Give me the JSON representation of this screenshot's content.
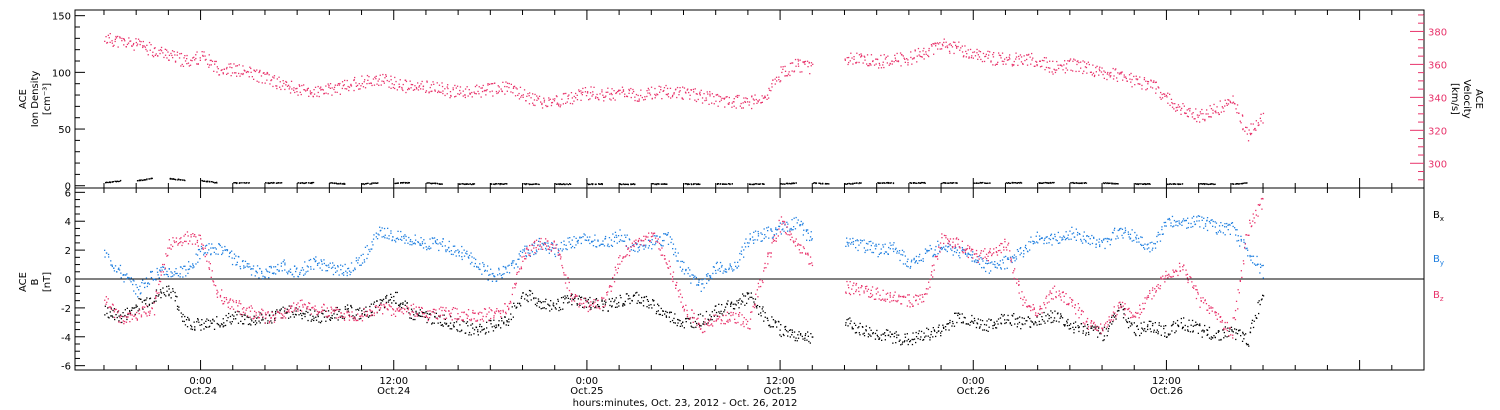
{
  "chart_data": [
    {
      "type": "scatter",
      "panel": "top",
      "left_axis": {
        "label_lines": [
          "ACE",
          "Ion Density",
          "[cm⁻³]"
        ],
        "ylim": [
          -2,
          155
        ],
        "ticks": [
          0,
          50,
          100,
          150
        ],
        "tick_labels": [
          "0",
          "50",
          "100",
          "150"
        ]
      },
      "right_axis": {
        "label_lines": [
          "ACE",
          "Velocity",
          "[km/s]"
        ],
        "ylim": [
          285,
          393
        ],
        "ticks": [
          300,
          320,
          340,
          360,
          380
        ],
        "tick_labels": [
          "300",
          "320",
          "340",
          "360",
          "380"
        ],
        "color": "#e8336b"
      },
      "series": [
        {
          "color": "#e8336b",
          "axis": "right",
          "x_hours": [
            -6,
            -5,
            -4,
            -3,
            -2,
            -1,
            0,
            1,
            2,
            3,
            4,
            5,
            6,
            7,
            8,
            9,
            10,
            11,
            12,
            13,
            14,
            15,
            16,
            17,
            18,
            19,
            20,
            21,
            22,
            23,
            24,
            25,
            26,
            27,
            28,
            29,
            30,
            31,
            32,
            33,
            34,
            35,
            36,
            37,
            38,
            39,
            40,
            41,
            42,
            43,
            44,
            45,
            46,
            47,
            48,
            49,
            50,
            51,
            52,
            53,
            54,
            55,
            56,
            57,
            58,
            59,
            60,
            61,
            62,
            63,
            64,
            65,
            66
          ],
          "values": [
            376,
            374,
            372,
            369,
            366,
            362,
            365,
            358,
            357,
            355,
            352,
            348,
            345,
            343,
            345,
            347,
            350,
            351,
            349,
            346,
            347,
            345,
            343,
            344,
            345,
            346,
            342,
            337,
            338,
            340,
            343,
            342,
            343,
            341,
            343,
            344,
            343,
            341,
            339,
            338,
            337,
            339,
            355,
            360,
            358,
            null,
            364,
            363,
            362,
            363,
            364,
            368,
            372,
            370,
            366,
            364,
            363,
            364,
            362,
            358,
            360,
            358,
            355,
            354,
            350,
            348,
            340,
            332,
            329,
            333,
            338,
            318,
            330
          ]
        },
        {
          "color": "#000000",
          "axis": "left",
          "x_hours": [
            -6,
            -4,
            -2,
            0,
            2,
            4,
            6,
            8,
            10,
            12,
            14,
            16,
            18,
            20,
            22,
            24,
            26,
            28,
            30,
            32,
            34,
            36,
            38,
            40,
            42,
            44,
            46,
            48,
            50,
            52,
            54,
            56,
            58,
            60,
            62,
            64,
            66
          ],
          "values": [
            3,
            5,
            7,
            5,
            3,
            3,
            3,
            3,
            2,
            3,
            3,
            2,
            2,
            2,
            2,
            2,
            2,
            2,
            2,
            2,
            2,
            2,
            3,
            2,
            3,
            3,
            3,
            3,
            3,
            3,
            3,
            3,
            2,
            2,
            2,
            2,
            3
          ]
        }
      ]
    },
    {
      "type": "scatter",
      "panel": "bottom",
      "left_axis": {
        "label_lines": [
          "ACE",
          "B",
          "[nT]"
        ],
        "ylim": [
          -6.3,
          6.3
        ],
        "ticks": [
          -6,
          -4,
          -2,
          0,
          2,
          4,
          6
        ],
        "tick_labels": [
          "-6",
          "-4",
          "-2",
          "0",
          "2",
          "4",
          "6"
        ]
      },
      "zero_line": true,
      "legend": [
        {
          "text": "B",
          "sub": "x",
          "color": "#000000"
        },
        {
          "text": "B",
          "sub": "y",
          "color": "#1f7fe0"
        },
        {
          "text": "B",
          "sub": "z",
          "color": "#e8336b"
        }
      ],
      "series": [
        {
          "color": "#000000",
          "x_hours": [
            -6,
            -5,
            -4,
            -3,
            -2,
            -1,
            0,
            1,
            2,
            3,
            4,
            5,
            6,
            7,
            8,
            9,
            10,
            11,
            12,
            13,
            14,
            15,
            16,
            17,
            18,
            19,
            20,
            21,
            22,
            23,
            24,
            25,
            26,
            27,
            28,
            29,
            30,
            31,
            32,
            33,
            34,
            35,
            36,
            37,
            38,
            39,
            40,
            41,
            42,
            43,
            44,
            45,
            46,
            47,
            48,
            49,
            50,
            51,
            52,
            53,
            54,
            55,
            56,
            57,
            58,
            59,
            60,
            61,
            62,
            63,
            64,
            65,
            66
          ],
          "values": [
            -2.2,
            -2.6,
            -1.8,
            -1.2,
            -0.6,
            -2.9,
            -3.2,
            -3.0,
            -2.6,
            -2.8,
            -2.7,
            -2.3,
            -2.2,
            -2.6,
            -2.5,
            -2.2,
            -2.4,
            -1.8,
            -1.2,
            -2.4,
            -2.6,
            -2.8,
            -3.2,
            -3.5,
            -3.2,
            -2.8,
            -1.0,
            -1.6,
            -1.8,
            -1.4,
            -1.6,
            -1.8,
            -1.5,
            -1.2,
            -1.8,
            -2.5,
            -3.0,
            -2.8,
            -2.2,
            -1.8,
            -1.2,
            -2.6,
            -3.5,
            -3.8,
            -4.0,
            null,
            -3.0,
            -3.5,
            -3.8,
            -4.0,
            -4.2,
            -3.8,
            -3.5,
            -2.5,
            -3.0,
            -3.2,
            -2.6,
            -3.0,
            -2.8,
            -2.5,
            -3.2,
            -3.5,
            -3.8,
            -2.0,
            -3.5,
            -3.2,
            -3.6,
            -3.0,
            -3.5,
            -3.8,
            -3.6,
            -4.2,
            -0.5
          ]
        },
        {
          "color": "#1f7fe0",
          "x_hours": [
            -6,
            -5,
            -4,
            -3,
            -2,
            -1,
            0,
            1,
            2,
            3,
            4,
            5,
            6,
            7,
            8,
            9,
            10,
            11,
            12,
            13,
            14,
            15,
            16,
            17,
            18,
            19,
            20,
            21,
            22,
            23,
            24,
            25,
            26,
            27,
            28,
            29,
            30,
            31,
            32,
            33,
            34,
            35,
            36,
            37,
            38,
            39,
            40,
            41,
            42,
            43,
            44,
            45,
            46,
            47,
            48,
            49,
            50,
            51,
            52,
            53,
            54,
            55,
            56,
            57,
            58,
            59,
            60,
            61,
            62,
            63,
            64,
            65,
            66
          ],
          "values": [
            1.8,
            0.5,
            -0.8,
            0.4,
            0.6,
            0.5,
            2.0,
            2.2,
            1.4,
            0.6,
            0.5,
            1.0,
            0.5,
            1.2,
            0.8,
            0.6,
            1.5,
            3.2,
            3.0,
            2.8,
            2.5,
            2.4,
            2.0,
            1.2,
            0.2,
            0.6,
            1.8,
            2.4,
            2.0,
            2.6,
            2.8,
            2.5,
            3.0,
            2.2,
            2.6,
            2.8,
            0.6,
            -0.5,
            0.8,
            0.6,
            2.8,
            3.2,
            3.5,
            4.0,
            2.6,
            null,
            2.6,
            2.4,
            2.0,
            2.2,
            1.0,
            1.8,
            2.4,
            2.0,
            1.5,
            0.8,
            1.2,
            2.0,
            3.0,
            2.8,
            3.2,
            2.8,
            2.5,
            3.4,
            3.0,
            2.2,
            4.0,
            3.8,
            4.1,
            3.6,
            3.5,
            2.0,
            0.4
          ]
        },
        {
          "color": "#e8336b",
          "x_hours": [
            -6,
            -5,
            -4,
            -3,
            -2,
            -1,
            0,
            1,
            2,
            3,
            4,
            5,
            6,
            7,
            8,
            9,
            10,
            11,
            12,
            13,
            14,
            15,
            16,
            17,
            18,
            19,
            20,
            21,
            22,
            23,
            24,
            25,
            26,
            27,
            28,
            29,
            30,
            31,
            32,
            33,
            34,
            35,
            36,
            37,
            38,
            39,
            40,
            41,
            42,
            43,
            44,
            45,
            46,
            47,
            48,
            49,
            50,
            51,
            52,
            53,
            54,
            55,
            56,
            57,
            58,
            59,
            60,
            61,
            62,
            63,
            64,
            65,
            66
          ],
          "values": [
            -1.5,
            -2.8,
            -2.4,
            -2.0,
            2.4,
            2.9,
            2.6,
            -1.0,
            -1.8,
            -2.2,
            -2.6,
            -2.4,
            -1.8,
            -2.0,
            -2.2,
            -2.4,
            -2.4,
            -2.0,
            -2.2,
            -2.0,
            -2.6,
            -2.3,
            -2.4,
            -2.5,
            -2.4,
            -2.0,
            1.8,
            2.5,
            2.2,
            -1.2,
            -1.8,
            -1.6,
            1.5,
            2.5,
            3.0,
            1.0,
            -2.0,
            -3.3,
            -2.8,
            -2.5,
            -3.0,
            1.0,
            4.0,
            2.6,
            0.8,
            null,
            -0.5,
            -0.8,
            -1.0,
            -1.2,
            -1.5,
            -1.0,
            2.8,
            2.4,
            1.6,
            1.8,
            2.5,
            -1.5,
            -2.2,
            -0.8,
            -1.5,
            -3.0,
            -3.5,
            -1.8,
            -2.5,
            -1.0,
            0.5,
            0.8,
            -1.5,
            -2.4,
            -3.8,
            3.5,
            5.6
          ]
        }
      ]
    }
  ],
  "x_axis": {
    "range_hours": [
      -7.8,
      76
    ],
    "major_ticks_hours": [
      0,
      12,
      24,
      36,
      48,
      60
    ],
    "tick_labels": [
      {
        "time": "0:00",
        "date": "Oct.24"
      },
      {
        "time": "12:00",
        "date": "Oct.24"
      },
      {
        "time": "0:00",
        "date": "Oct.25"
      },
      {
        "time": "12:00",
        "date": "Oct.25"
      },
      {
        "time": "0:00",
        "date": "Oct.26"
      },
      {
        "time": "12:00",
        "date": "Oct.26"
      }
    ],
    "xlabel": "hours:minutes, Oct. 23, 2012 - Oct. 26, 2012"
  }
}
